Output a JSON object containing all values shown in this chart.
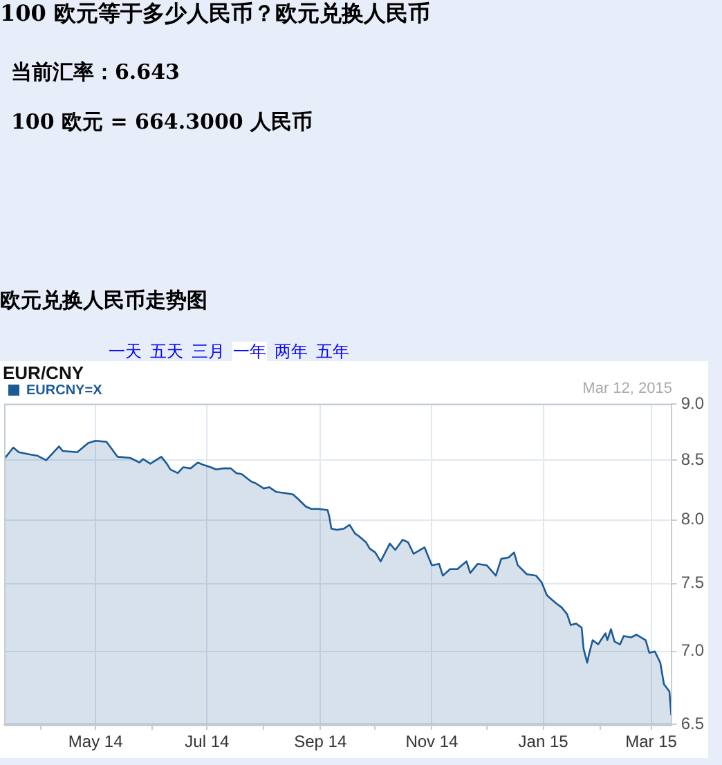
{
  "chart_data": {
    "type": "area",
    "title": "EUR/CNY",
    "subtitle": "Mar 12, 2015",
    "annotations": [
      "100 欧元等于多少人民币？欧元兑换人民币",
      "当前汇率：6.643",
      "100 欧元 = 664.3000 人民币",
      "欧元兑换人民币走势图",
      "一天",
      "五天",
      "三月",
      "一年",
      "两年",
      "五年"
    ],
    "x": [
      "2014-03-12",
      "2014-03-13",
      "2014-03-17",
      "2014-03-20",
      "2014-03-26",
      "2014-03-30",
      "2014-04-04",
      "2014-04-11",
      "2014-04-13",
      "2014-04-21",
      "2014-04-27",
      "2014-05-01",
      "2014-05-07",
      "2014-05-13",
      "2014-05-20",
      "2014-05-25",
      "2014-05-27",
      "2014-05-31",
      "2014-06-06",
      "2014-06-09",
      "2014-06-11",
      "2014-06-15",
      "2014-06-18",
      "2014-06-22",
      "2014-06-26",
      "2014-06-29",
      "2014-07-03",
      "2014-07-06",
      "2014-07-10",
      "2014-07-14",
      "2014-07-17",
      "2014-07-20",
      "2014-07-25",
      "2014-07-28",
      "2014-08-01",
      "2014-08-04",
      "2014-08-08",
      "2014-08-13",
      "2014-08-17",
      "2014-08-20",
      "2014-08-24",
      "2014-08-27",
      "2014-08-31",
      "2014-09-05",
      "2014-09-06",
      "2014-09-07",
      "2014-09-10",
      "2014-09-14",
      "2014-09-17",
      "2014-09-20",
      "2014-09-22",
      "2014-09-26",
      "2014-09-28",
      "2014-10-01",
      "2014-10-04",
      "2014-10-09",
      "2014-10-12",
      "2014-10-16",
      "2014-10-19",
      "2014-10-22",
      "2014-10-28",
      "2014-10-30",
      "2014-11-01",
      "2014-11-05",
      "2014-11-07",
      "2014-11-11",
      "2014-11-15",
      "2014-11-20",
      "2014-11-22",
      "2014-11-26",
      "2014-12-01",
      "2014-12-06",
      "2014-12-09",
      "2014-12-13",
      "2014-12-16",
      "2014-12-18",
      "2014-12-23",
      "2014-12-28",
      "2014-12-31",
      "2015-01-03",
      "2015-01-08",
      "2015-01-11",
      "2015-01-14",
      "2015-01-16",
      "2015-01-19",
      "2015-01-22",
      "2015-01-23",
      "2015-01-25",
      "2015-01-26",
      "2015-01-28",
      "2015-01-31",
      "2015-02-04",
      "2015-02-05",
      "2015-02-07",
      "2015-02-09",
      "2015-02-12",
      "2015-02-14",
      "2015-02-18",
      "2015-02-21",
      "2015-02-26",
      "2015-02-28",
      "2015-03-03",
      "2015-03-06",
      "2015-03-08",
      "2015-03-11",
      "2015-03-12"
    ],
    "series": [
      {
        "name": "EURCNY=X",
        "color": "#1c5a96",
        "values": [
          8.51,
          8.53,
          8.61,
          8.57,
          8.55,
          8.54,
          8.5,
          8.62,
          8.58,
          8.57,
          8.65,
          8.67,
          8.66,
          8.53,
          8.52,
          8.48,
          8.51,
          8.47,
          8.53,
          8.47,
          8.42,
          8.39,
          8.44,
          8.43,
          8.48,
          8.46,
          8.44,
          8.42,
          8.43,
          8.43,
          8.39,
          8.38,
          8.32,
          8.3,
          8.26,
          8.27,
          8.23,
          8.22,
          8.21,
          8.17,
          8.11,
          8.09,
          8.09,
          8.08,
          8.02,
          7.93,
          7.92,
          7.93,
          7.96,
          7.89,
          7.87,
          7.82,
          7.77,
          7.74,
          7.67,
          7.81,
          7.76,
          7.84,
          7.82,
          7.73,
          7.78,
          7.71,
          7.64,
          7.65,
          7.56,
          7.61,
          7.61,
          7.67,
          7.58,
          7.65,
          7.64,
          7.56,
          7.69,
          7.7,
          7.74,
          7.64,
          7.57,
          7.56,
          7.51,
          7.41,
          7.35,
          7.32,
          7.27,
          7.19,
          7.2,
          7.17,
          7.02,
          6.92,
          6.98,
          7.08,
          7.05,
          7.13,
          7.08,
          7.16,
          7.07,
          7.05,
          7.11,
          7.1,
          7.12,
          7.08,
          6.99,
          7.0,
          6.92,
          6.77,
          6.72,
          6.56
        ]
      }
    ],
    "xlim": [
      "2014-03-12",
      "2015-03-12"
    ],
    "xticks": [
      {
        "value": "2014-04-01",
        "label": null
      },
      {
        "value": "2014-05-01",
        "label": "May 14"
      },
      {
        "value": "2014-06-01",
        "label": null
      },
      {
        "value": "2014-07-01",
        "label": "Jul 14"
      },
      {
        "value": "2014-08-01",
        "label": null
      },
      {
        "value": "2014-09-01",
        "label": "Sep 14"
      },
      {
        "value": "2014-10-01",
        "label": null
      },
      {
        "value": "2014-11-01",
        "label": "Nov 14"
      },
      {
        "value": "2014-12-01",
        "label": null
      },
      {
        "value": "2015-01-01",
        "label": "Jan 15"
      },
      {
        "value": "2015-02-01",
        "label": null
      },
      {
        "value": "2015-03-01",
        "label": "Mar 15"
      }
    ],
    "ylim": [
      6.5,
      9
    ],
    "yticks": [
      {
        "value": 9,
        "label": "9.0"
      },
      8.5,
      {
        "value": 8,
        "label": "8.0"
      },
      7.5,
      {
        "value": 7,
        "label": "7.0"
      },
      6.5
    ],
    "log": "y",
    "grid": true,
    "legend": "top left",
    "marker": "none",
    "line_style": "solid"
  }
}
